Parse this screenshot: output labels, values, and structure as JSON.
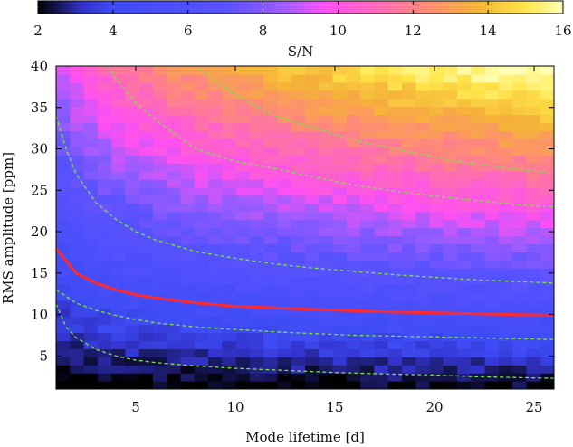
{
  "chart_data": {
    "type": "heatmap",
    "xlabel": "Mode lifetime [d]",
    "ylabel": "RMS amplitude [ppm]",
    "xlim": [
      1,
      26
    ],
    "ylim": [
      1,
      40
    ],
    "x_ticks": [
      5,
      10,
      15,
      20,
      25
    ],
    "y_ticks": [
      5,
      10,
      15,
      20,
      25,
      30,
      35,
      40
    ],
    "colorbar": {
      "label": "S/N",
      "range": [
        2,
        16
      ],
      "ticks": [
        2,
        4,
        6,
        8,
        10,
        12,
        14,
        16
      ],
      "stops": [
        {
          "value": 2.0,
          "color": "#000000"
        },
        {
          "value": 2.6,
          "color": "#1a1a66"
        },
        {
          "value": 3.2,
          "color": "#3333cc"
        },
        {
          "value": 4.0,
          "color": "#3d4cf5"
        },
        {
          "value": 7.0,
          "color": "#5a52ff"
        },
        {
          "value": 8.5,
          "color": "#9b5cff"
        },
        {
          "value": 9.7,
          "color": "#ff50f2"
        },
        {
          "value": 11.0,
          "color": "#ff68bc"
        },
        {
          "value": 12.3,
          "color": "#ff8a78"
        },
        {
          "value": 13.7,
          "color": "#f5b238"
        },
        {
          "value": 15.0,
          "color": "#ffe64a"
        },
        {
          "value": 16.0,
          "color": "#ffffb8"
        }
      ]
    },
    "grid": false,
    "series": [
      {
        "style": "solid",
        "color": "#ff2a2a",
        "x": [
          1,
          2,
          3,
          4,
          5,
          6,
          8,
          10,
          12,
          14,
          16,
          18,
          20,
          22,
          24,
          26
        ],
        "y": [
          18.0,
          15.0,
          13.8,
          13.0,
          12.4,
          12.0,
          11.4,
          11.0,
          10.8,
          10.6,
          10.45,
          10.3,
          10.2,
          10.1,
          10.0,
          9.9
        ]
      },
      {
        "style": "dashed",
        "color": "#7de04a",
        "x": [
          1,
          1.5,
          2,
          3,
          4,
          5,
          6,
          8,
          10,
          12,
          15,
          18,
          20,
          22,
          24,
          26
        ],
        "y": [
          11.3,
          8.5,
          7.2,
          5.8,
          5.0,
          4.5,
          4.2,
          3.8,
          3.5,
          3.3,
          3.0,
          2.8,
          2.7,
          2.5,
          2.4,
          2.3
        ]
      },
      {
        "style": "dashed",
        "color": "#7de04a",
        "x": [
          1,
          2,
          3,
          4,
          5,
          6,
          8,
          10,
          12,
          14,
          16,
          18,
          20,
          22,
          24,
          26
        ],
        "y": [
          13.0,
          11.4,
          10.5,
          9.9,
          9.4,
          9.0,
          8.5,
          8.2,
          7.9,
          7.7,
          7.5,
          7.4,
          7.3,
          7.2,
          7.1,
          7.0
        ]
      },
      {
        "style": "dashed",
        "color": "#7de04a",
        "x": [
          1,
          1.5,
          2,
          3,
          4,
          5,
          6,
          8,
          10,
          12,
          14,
          16,
          18,
          20,
          22,
          24,
          26
        ],
        "y": [
          34.0,
          30.0,
          27.0,
          23.5,
          21.5,
          20.0,
          19.0,
          17.6,
          16.8,
          16.1,
          15.6,
          15.2,
          14.8,
          14.5,
          14.2,
          14.0,
          13.8
        ]
      },
      {
        "style": "dashed",
        "color": "#7de04a",
        "x": [
          1.5,
          2,
          2.5,
          3,
          4,
          5,
          6,
          8,
          10,
          12,
          14,
          16,
          18,
          20,
          22,
          24,
          26
        ],
        "y": [
          56.0,
          50.0,
          45.5,
          42.5,
          38.5,
          35.5,
          33.5,
          30.0,
          28.5,
          27.6,
          26.6,
          25.6,
          24.9,
          24.3,
          23.8,
          23.3,
          23.0
        ]
      },
      {
        "style": "dashed",
        "color": "#7de04a",
        "x": [
          5,
          6,
          7,
          8,
          10,
          12,
          14,
          16,
          18,
          20,
          22,
          24,
          26
        ],
        "y": [
          52.0,
          47.0,
          43.5,
          40.0,
          36.5,
          34.0,
          32.5,
          31.0,
          30.0,
          29.0,
          28.2,
          27.6,
          27.0
        ]
      }
    ]
  }
}
